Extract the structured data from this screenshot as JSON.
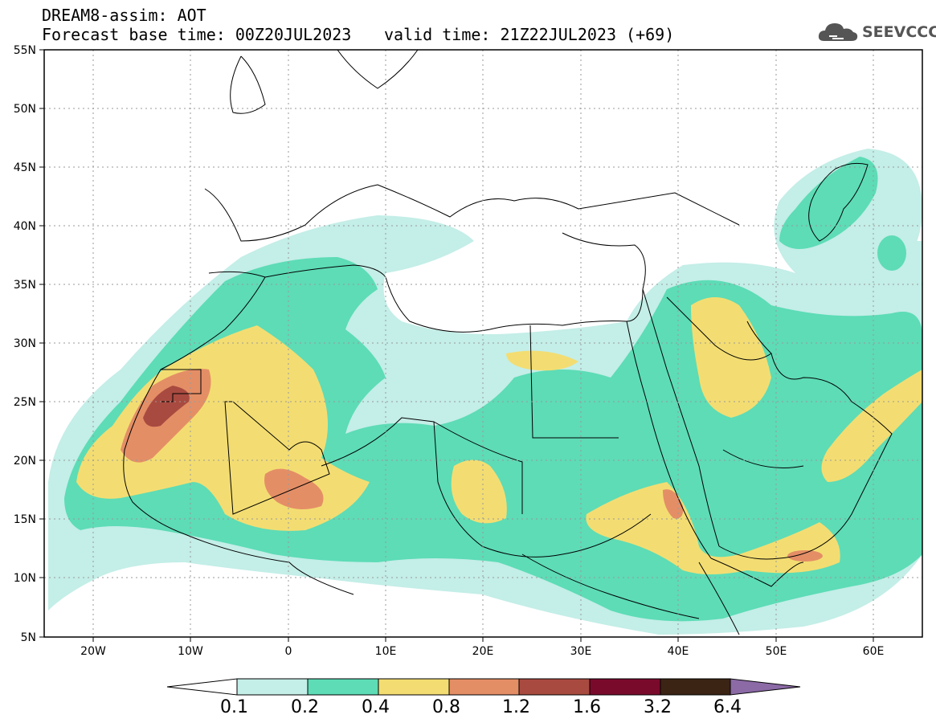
{
  "header": {
    "title_line1": "DREAM8-assim: AOT",
    "base_time": "Forecast base time: 00Z20JUL2023",
    "valid_time": "valid time: 21Z22JUL2023 (+69)"
  },
  "logo": {
    "text": "SEEVCCC",
    "icon": "cloud-icon"
  },
  "axes": {
    "lat_labels": [
      "55N",
      "50N",
      "45N",
      "40N",
      "35N",
      "30N",
      "25N",
      "20N",
      "15N",
      "10N",
      "5N"
    ],
    "lon_labels": [
      "20W",
      "10W",
      "0",
      "10E",
      "20E",
      "30E",
      "40E",
      "50E",
      "60E"
    ]
  },
  "colorbar": {
    "levels": [
      "0.1",
      "0.2",
      "0.4",
      "0.8",
      "1.2",
      "1.6",
      "3.2",
      "6.4"
    ],
    "colors": [
      "#ffffff",
      "#c4eee8",
      "#5ddcb6",
      "#f3dd72",
      "#e48e66",
      "#a94a40",
      "#7a0a2c",
      "#3b2414",
      "#8b6aa6"
    ]
  },
  "colors": {
    "c1": "#c4eee8",
    "c2": "#5ddcb6",
    "c3": "#f3dd72",
    "c4": "#e48e66",
    "c5": "#a94a40"
  }
}
